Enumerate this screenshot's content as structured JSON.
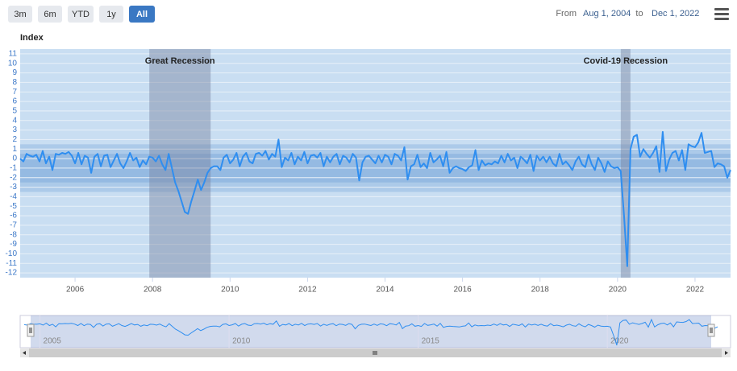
{
  "range_selector": {
    "buttons": [
      "3m",
      "6m",
      "YTD",
      "1y",
      "All"
    ],
    "selected": 4,
    "from_label": "From",
    "from": "Aug 1, 2004",
    "to_label": "to",
    "to": "Dec 1, 2022"
  },
  "chart_data": {
    "type": "line",
    "y_label": "Index",
    "color": "#2f8ef0",
    "x": [
      "2004-08",
      "2004-09",
      "2004-10",
      "2004-11",
      "2004-12",
      "2005-01",
      "2005-02",
      "2005-03",
      "2005-04",
      "2005-05",
      "2005-06",
      "2005-07",
      "2005-08",
      "2005-09",
      "2005-10",
      "2005-11",
      "2005-12",
      "2006-01",
      "2006-02",
      "2006-03",
      "2006-04",
      "2006-05",
      "2006-06",
      "2006-07",
      "2006-08",
      "2006-09",
      "2006-10",
      "2006-11",
      "2006-12",
      "2007-01",
      "2007-02",
      "2007-03",
      "2007-04",
      "2007-05",
      "2007-06",
      "2007-07",
      "2007-08",
      "2007-09",
      "2007-10",
      "2007-11",
      "2007-12",
      "2008-01",
      "2008-02",
      "2008-03",
      "2008-04",
      "2008-05",
      "2008-06",
      "2008-07",
      "2008-08",
      "2008-09",
      "2008-10",
      "2008-11",
      "2008-12",
      "2009-01",
      "2009-02",
      "2009-03",
      "2009-04",
      "2009-05",
      "2009-06",
      "2009-07",
      "2009-08",
      "2009-09",
      "2009-10",
      "2009-11",
      "2009-12",
      "2010-01",
      "2010-02",
      "2010-03",
      "2010-04",
      "2010-05",
      "2010-06",
      "2010-07",
      "2010-08",
      "2010-09",
      "2010-10",
      "2010-11",
      "2010-12",
      "2011-01",
      "2011-02",
      "2011-03",
      "2011-04",
      "2011-05",
      "2011-06",
      "2011-07",
      "2011-08",
      "2011-09",
      "2011-10",
      "2011-11",
      "2011-12",
      "2012-01",
      "2012-02",
      "2012-03",
      "2012-04",
      "2012-05",
      "2012-06",
      "2012-07",
      "2012-08",
      "2012-09",
      "2012-10",
      "2012-11",
      "2012-12",
      "2013-01",
      "2013-02",
      "2013-03",
      "2013-04",
      "2013-05",
      "2013-06",
      "2013-07",
      "2013-08",
      "2013-09",
      "2013-10",
      "2013-11",
      "2013-12",
      "2014-01",
      "2014-02",
      "2014-03",
      "2014-04",
      "2014-05",
      "2014-06",
      "2014-07",
      "2014-08",
      "2014-09",
      "2014-10",
      "2014-11",
      "2014-12",
      "2015-01",
      "2015-02",
      "2015-03",
      "2015-04",
      "2015-05",
      "2015-06",
      "2015-07",
      "2015-08",
      "2015-09",
      "2015-10",
      "2015-11",
      "2015-12",
      "2016-01",
      "2016-02",
      "2016-03",
      "2016-04",
      "2016-05",
      "2016-06",
      "2016-07",
      "2016-08",
      "2016-09",
      "2016-10",
      "2016-11",
      "2016-12",
      "2017-01",
      "2017-02",
      "2017-03",
      "2017-04",
      "2017-05",
      "2017-06",
      "2017-07",
      "2017-08",
      "2017-09",
      "2017-10",
      "2017-11",
      "2017-12",
      "2018-01",
      "2018-02",
      "2018-03",
      "2018-04",
      "2018-05",
      "2018-06",
      "2018-07",
      "2018-08",
      "2018-09",
      "2018-10",
      "2018-11",
      "2018-12",
      "2019-01",
      "2019-02",
      "2019-03",
      "2019-04",
      "2019-05",
      "2019-06",
      "2019-07",
      "2019-08",
      "2019-09",
      "2019-10",
      "2019-11",
      "2019-12",
      "2020-01",
      "2020-02",
      "2020-03",
      "2020-04",
      "2020-05",
      "2020-06",
      "2020-07",
      "2020-08",
      "2020-09",
      "2020-10",
      "2020-11",
      "2020-12",
      "2021-01",
      "2021-02",
      "2021-03",
      "2021-04",
      "2021-05",
      "2021-06",
      "2021-07",
      "2021-08",
      "2021-09",
      "2021-10",
      "2021-11",
      "2021-12",
      "2022-01",
      "2022-02",
      "2022-03",
      "2022-04",
      "2022-05",
      "2022-06",
      "2022-07",
      "2022-08",
      "2022-09",
      "2022-10",
      "2022-11",
      "2022-12"
    ],
    "values": [
      0,
      -0.3,
      0.5,
      0.3,
      0.2,
      0.4,
      -0.3,
      0.8,
      -0.5,
      0.2,
      -1.2,
      0.5,
      0.4,
      0.6,
      0.5,
      0.7,
      0.3,
      -0.5,
      0.6,
      -0.6,
      0.3,
      0.1,
      -1.5,
      0.2,
      0.5,
      -0.8,
      0.3,
      0.4,
      -0.9,
      -0.2,
      0.5,
      -0.5,
      -1.0,
      -0.3,
      0.6,
      -0.2,
      0.1,
      -0.9,
      -0.2,
      -0.6,
      0.2,
      0.1,
      -0.3,
      0.3,
      -0.6,
      -1.2,
      0.5,
      -1.0,
      -2.5,
      -3.4,
      -4.5,
      -5.6,
      -5.8,
      -4.5,
      -3.4,
      -2.2,
      -3.3,
      -2.5,
      -1.5,
      -1.0,
      -0.8,
      -0.8,
      -1.2,
      0.1,
      0.4,
      -0.5,
      -0.1,
      0.6,
      -0.8,
      0.2,
      0.6,
      -0.3,
      -0.5,
      0.5,
      0.6,
      0.3,
      0.8,
      -0.1,
      0.5,
      0.2,
      2.0,
      -0.9,
      0.1,
      -0.2,
      0.6,
      -0.6,
      0.2,
      -0.2,
      0.7,
      -0.5,
      0.3,
      0.4,
      0.1,
      0.6,
      -0.8,
      0.2,
      -0.4,
      0.2,
      0.5,
      -0.6,
      0.3,
      0.1,
      -0.4,
      0.5,
      0.1,
      -2.3,
      -0.4,
      0.2,
      0.3,
      -0.1,
      -0.5,
      0.3,
      -0.4,
      0.4,
      0.2,
      -0.6,
      0.5,
      0.3,
      -0.2,
      1.2,
      -2.2,
      -0.8,
      -0.6,
      0.4,
      -0.9,
      -0.5,
      -1.0,
      0.6,
      -0.4,
      -0.1,
      0.3,
      -0.8,
      0.7,
      -1.5,
      -1.0,
      -0.8,
      -1.0,
      -1.1,
      -1.3,
      -0.9,
      -0.7,
      0.9,
      -1.2,
      -0.2,
      -0.7,
      -0.5,
      -0.6,
      -0.3,
      -0.5,
      0.3,
      -0.4,
      0.5,
      -0.2,
      0.1,
      -1.0,
      0.2,
      -0.1,
      -0.5,
      0.4,
      -1.3,
      0.3,
      -0.2,
      0.2,
      -0.4,
      0.2,
      -0.5,
      -0.8,
      0.5,
      -0.6,
      -0.3,
      -0.7,
      -1.2,
      -0.3,
      0.2,
      -0.6,
      -0.9,
      0.4,
      -0.6,
      -1.2,
      0.1,
      -0.5,
      -1.4,
      -0.3,
      -0.8,
      -1.0,
      -0.9,
      -1.3,
      -6.0,
      -11.3,
      1.0,
      2.3,
      2.5,
      0.2,
      1.0,
      0.5,
      0.1,
      0.6,
      1.3,
      -1.4,
      2.8,
      -1.3,
      -0.1,
      0.6,
      0.8,
      -0.2,
      0.9,
      -1.2,
      1.5,
      1.3,
      1.2,
      1.7,
      2.7,
      0.6,
      0.7,
      0.8,
      -0.9,
      -0.5,
      -0.6,
      -0.8,
      -2.0,
      -1.2
    ],
    "xlim": [
      "2004-08",
      "2022-12"
    ],
    "xticks": [
      2006,
      2008,
      2010,
      2012,
      2014,
      2016,
      2018,
      2020,
      2022
    ],
    "ylim": [
      -12.5,
      11.5
    ],
    "yticks": [
      -12,
      -11,
      -10,
      -9,
      -8,
      -7,
      -6,
      -5,
      -4,
      -3,
      -2,
      -1,
      0,
      1,
      2,
      3,
      4,
      5,
      6,
      7,
      8,
      9,
      10,
      11
    ],
    "grid": true,
    "y_bands": [
      {
        "from": -3.5,
        "to": 1.5
      },
      {
        "from": -2.5,
        "to": 0.5
      }
    ],
    "plot_bands": [
      {
        "from": "2007-12",
        "to": "2009-07",
        "label": "Great Recession"
      },
      {
        "from": "2020-02",
        "to": "2020-05",
        "label": "Covid-19 Recession"
      }
    ],
    "navigator": {
      "xticks": [
        2005,
        2010,
        2015,
        2020
      ]
    }
  }
}
